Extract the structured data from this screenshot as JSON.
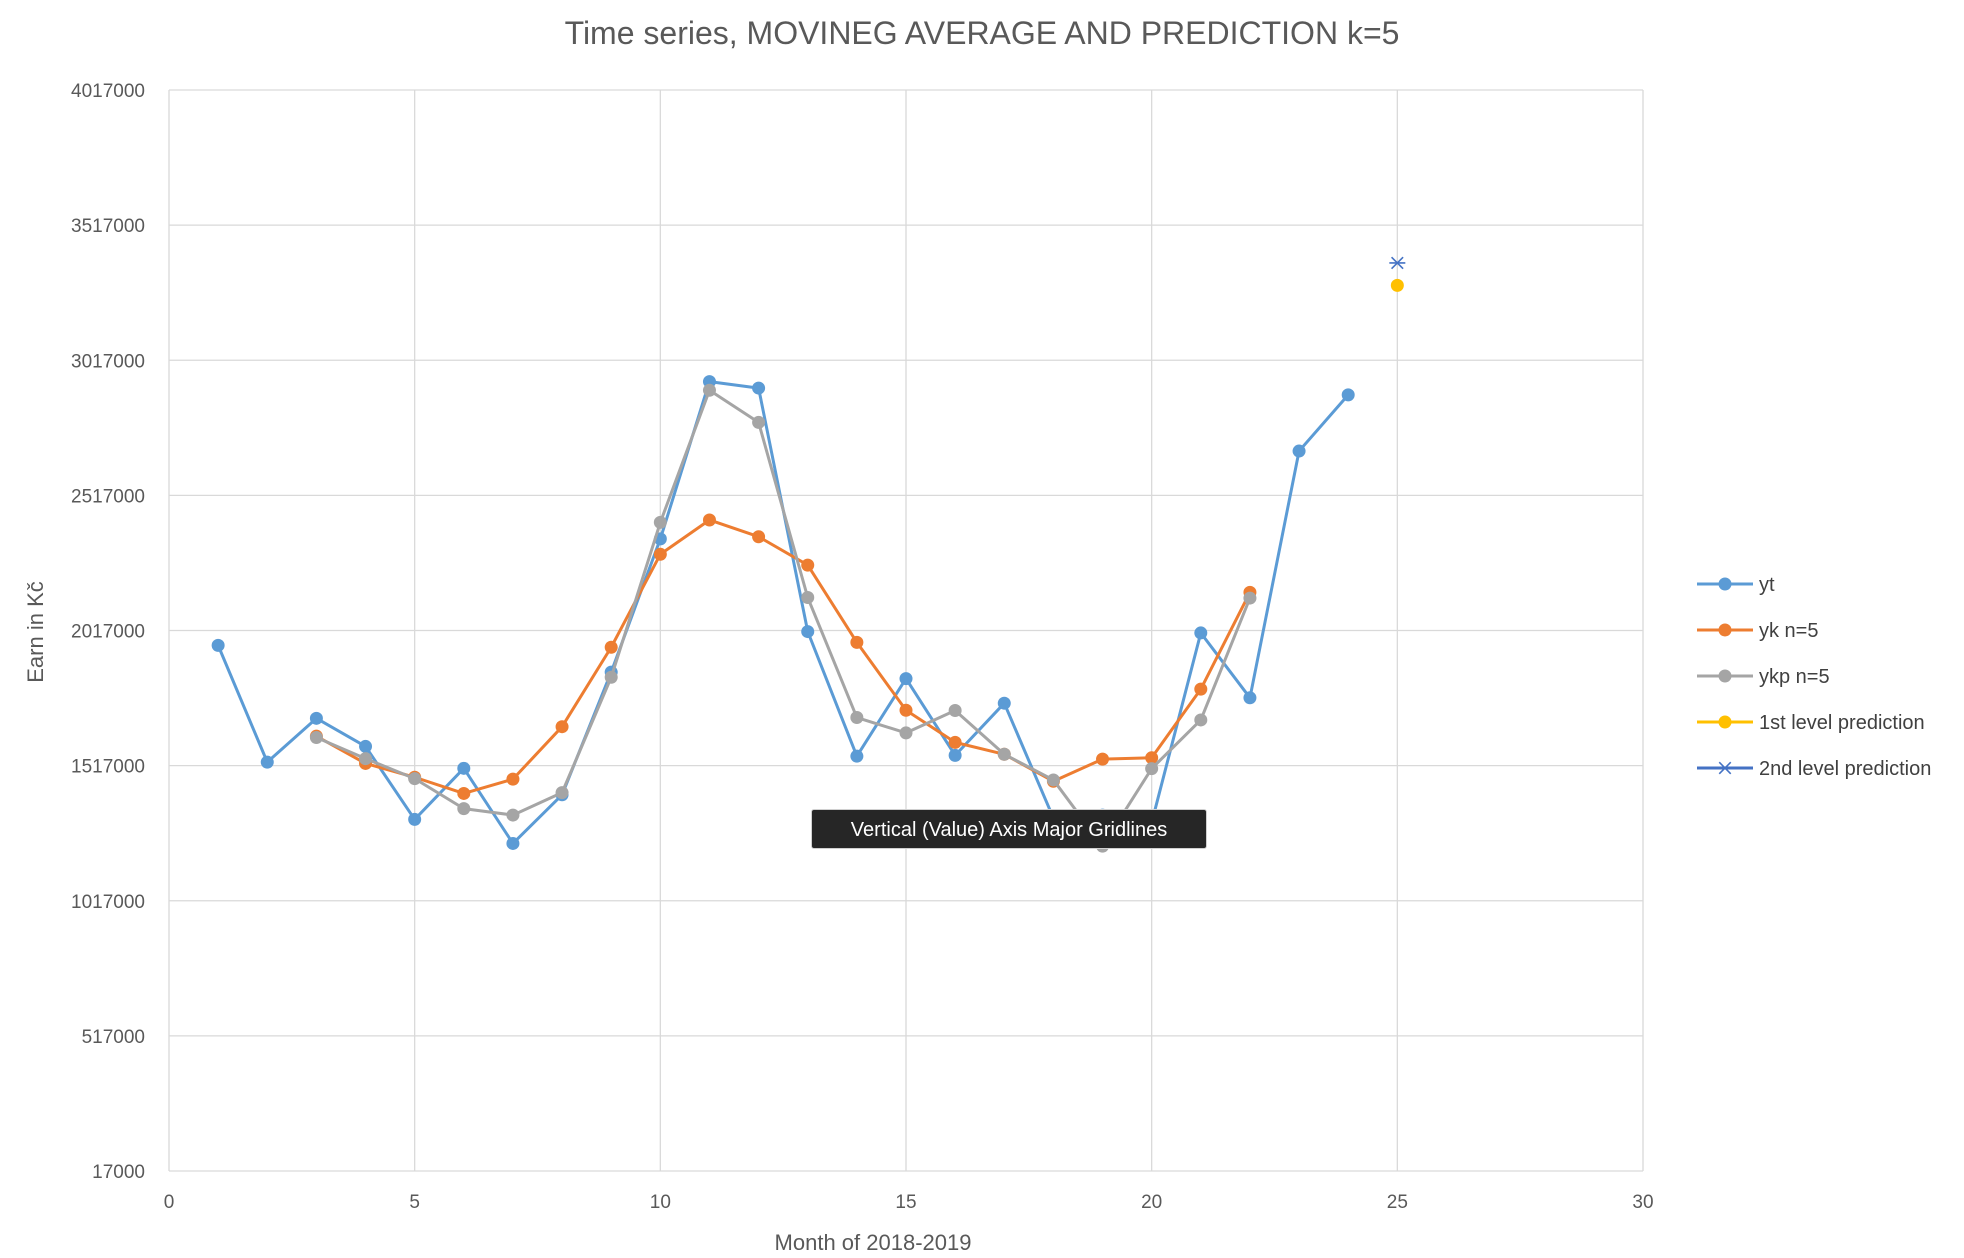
{
  "chart_data": {
    "type": "line",
    "title": "Time series,  MOVINEG AVERAGE AND PREDICTION k=5",
    "xlabel": "Month of 2018-2019",
    "ylabel": "Earn in Kč",
    "xlim": [
      0,
      30
    ],
    "ylim": [
      17000,
      4017000
    ],
    "x_ticks": [
      "0",
      "5",
      "10",
      "15",
      "20",
      "25",
      "30"
    ],
    "y_ticks": [
      "17000",
      "517000",
      "1017000",
      "1517000",
      "2017000",
      "2517000",
      "3017000",
      "3517000",
      "4017000"
    ],
    "grid": true,
    "legend_position": "right",
    "series": [
      {
        "name": "yt",
        "color": "#5B9BD5",
        "marker": "circle",
        "x": [
          1,
          2,
          3,
          4,
          5,
          6,
          7,
          8,
          9,
          10,
          11,
          12,
          13,
          14,
          15,
          16,
          17,
          18,
          19,
          20,
          21,
          22,
          23,
          24
        ],
        "y": [
          1962000,
          1530000,
          1692000,
          1588000,
          1318000,
          1507000,
          1229000,
          1409000,
          1863000,
          2356000,
          2938000,
          2914000,
          2013000,
          1552000,
          1839000,
          1555000,
          1748000,
          1323000,
          1334000,
          1306000,
          2008000,
          1768000,
          2681000,
          2889000
        ]
      },
      {
        "name": "yk n=5",
        "color": "#ED7D31",
        "marker": "circle",
        "x": [
          3,
          4,
          5,
          6,
          7,
          8,
          9,
          10,
          11,
          12,
          13,
          14,
          15,
          16,
          17,
          18,
          19,
          20,
          21,
          22
        ],
        "y": [
          1626000,
          1525000,
          1474000,
          1414000,
          1467000,
          1661000,
          1955000,
          2299000,
          2426000,
          2364000,
          2259000,
          1973000,
          1722000,
          1603000,
          1559000,
          1459000,
          1541000,
          1546000,
          1800000,
          2158000
        ]
      },
      {
        "name": "ykp n=5",
        "color": "#A5A5A5",
        "marker": "circle",
        "x": [
          3,
          4,
          5,
          6,
          7,
          8,
          9,
          10,
          11,
          12,
          13,
          14,
          15,
          16,
          17,
          18,
          19,
          20,
          21,
          22
        ],
        "y": [
          1621000,
          1543000,
          1469000,
          1358000,
          1334000,
          1417000,
          1844000,
          2417000,
          2906000,
          2787000,
          2139000,
          1695000,
          1638000,
          1721000,
          1559000,
          1464000,
          1219000,
          1506000,
          1686000,
          2137000
        ]
      },
      {
        "name": "1st level prediction",
        "color": "#FFC000",
        "marker": "circle",
        "x": [
          25
        ],
        "y": [
          3294000
        ]
      },
      {
        "name": "2nd level prediction",
        "color": "#4472C4",
        "marker": "star",
        "x": [
          25
        ],
        "y": [
          3377000
        ]
      }
    ]
  },
  "tooltip": {
    "text": "Vertical (Value) Axis Major Gridlines"
  }
}
